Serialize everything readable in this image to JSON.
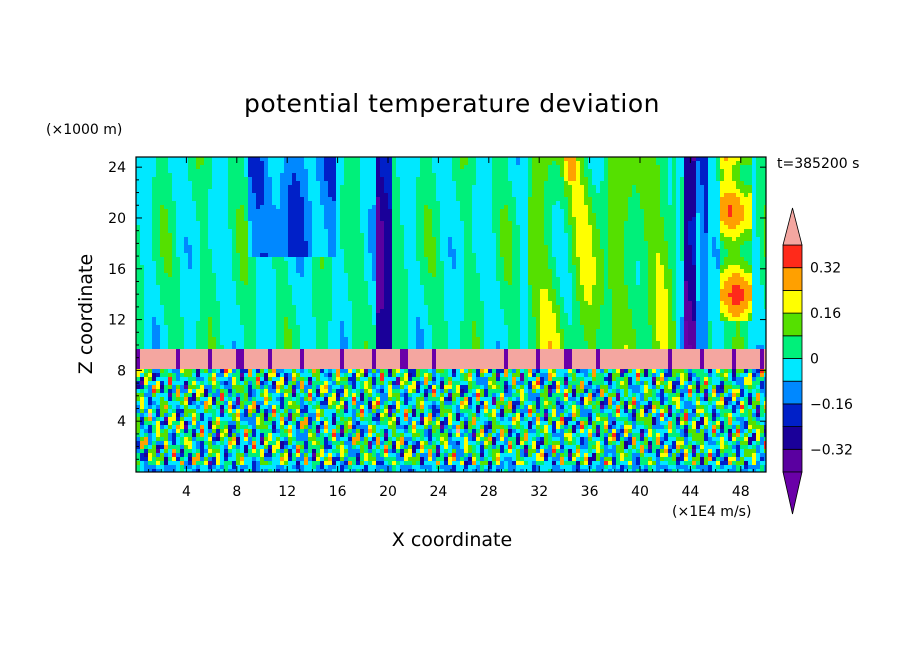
{
  "chart_data": {
    "type": "heatmap",
    "title": "potential temperature deviation",
    "xlabel": "X coordinate",
    "ylabel": "Z coordinate",
    "x_unit": "(×1E4 m/s)",
    "y_unit": "(×1000 m)",
    "time_label": "t=385200 s",
    "xlim": [
      0,
      50
    ],
    "ylim": [
      0,
      24.8
    ],
    "x_ticks": [
      4,
      8,
      12,
      16,
      20,
      24,
      28,
      32,
      36,
      40,
      44,
      48
    ],
    "y_ticks": [
      4,
      8,
      12,
      16,
      20,
      24
    ],
    "colorbar": {
      "levels": [
        -0.4,
        -0.32,
        -0.24,
        -0.16,
        -0.08,
        0,
        0.08,
        0.16,
        0.24,
        0.32,
        0.4
      ],
      "tick_labels": [
        "0.32",
        "0.16",
        "0",
        "−0.16",
        "−0.32"
      ],
      "tick_values": [
        0.32,
        0.16,
        0,
        -0.16,
        -0.32
      ],
      "colors": [
        "#5a00a0",
        "#1a0099",
        "#0020c8",
        "#0088ff",
        "#00e8ff",
        "#00f07a",
        "#55e000",
        "#ffff00",
        "#ffa000",
        "#ff2a1a"
      ],
      "over_color": "#f4a6a0",
      "under_color": "#6a00a8"
    },
    "regions": {
      "stable_layer_z": [
        8.0,
        9.6
      ],
      "stable_layer_value": "over",
      "upper_mean_value": 0.04,
      "lower_turbulent_z": [
        0,
        8.0
      ]
    }
  }
}
